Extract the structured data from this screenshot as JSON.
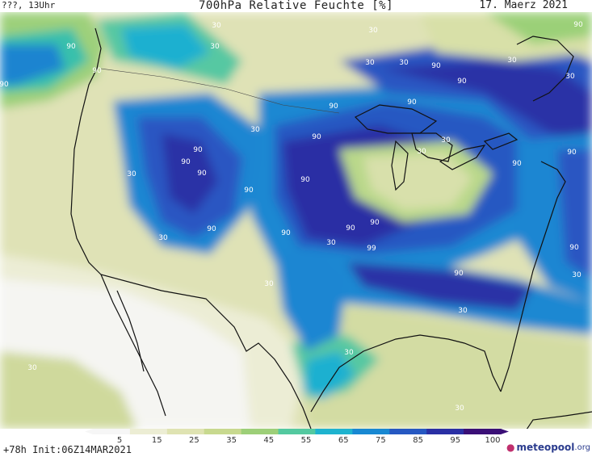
{
  "header": {
    "left": "???, 13Uhr",
    "title": "700hPa Relative Feuchte [%]",
    "date": "17. Maerz 2021"
  },
  "legend": {
    "ticks": [
      "5",
      "15",
      "25",
      "35",
      "45",
      "55",
      "65",
      "75",
      "85",
      "95",
      "100"
    ],
    "colors": [
      "#f6f6f6",
      "#ecedd4",
      "#dfe3b2",
      "#c8d98f",
      "#9dcf78",
      "#54c9a0",
      "#1eb3cf",
      "#1888d2",
      "#2658c2",
      "#2a2fa4",
      "#3a0f76"
    ]
  },
  "footer": {
    "run_label": "+78h Init:06Z14MAR2021",
    "logo_word": "meteo",
    "logo_word2": "pool",
    "logo_tld": ".org"
  },
  "map": {
    "contour_labels": [
      "90",
      "90",
      "90",
      "90",
      "90",
      "90",
      "90",
      "90",
      "90",
      "90",
      "90",
      "90",
      "90",
      "90",
      "90",
      "90",
      "90",
      "90",
      "90",
      "90",
      "90",
      "90",
      "99",
      "30",
      "30",
      "30",
      "30",
      "30",
      "30",
      "30",
      "30",
      "30",
      "30",
      "30",
      "30",
      "30",
      "30",
      "30",
      "30",
      "30",
      "30",
      "30"
    ]
  }
}
